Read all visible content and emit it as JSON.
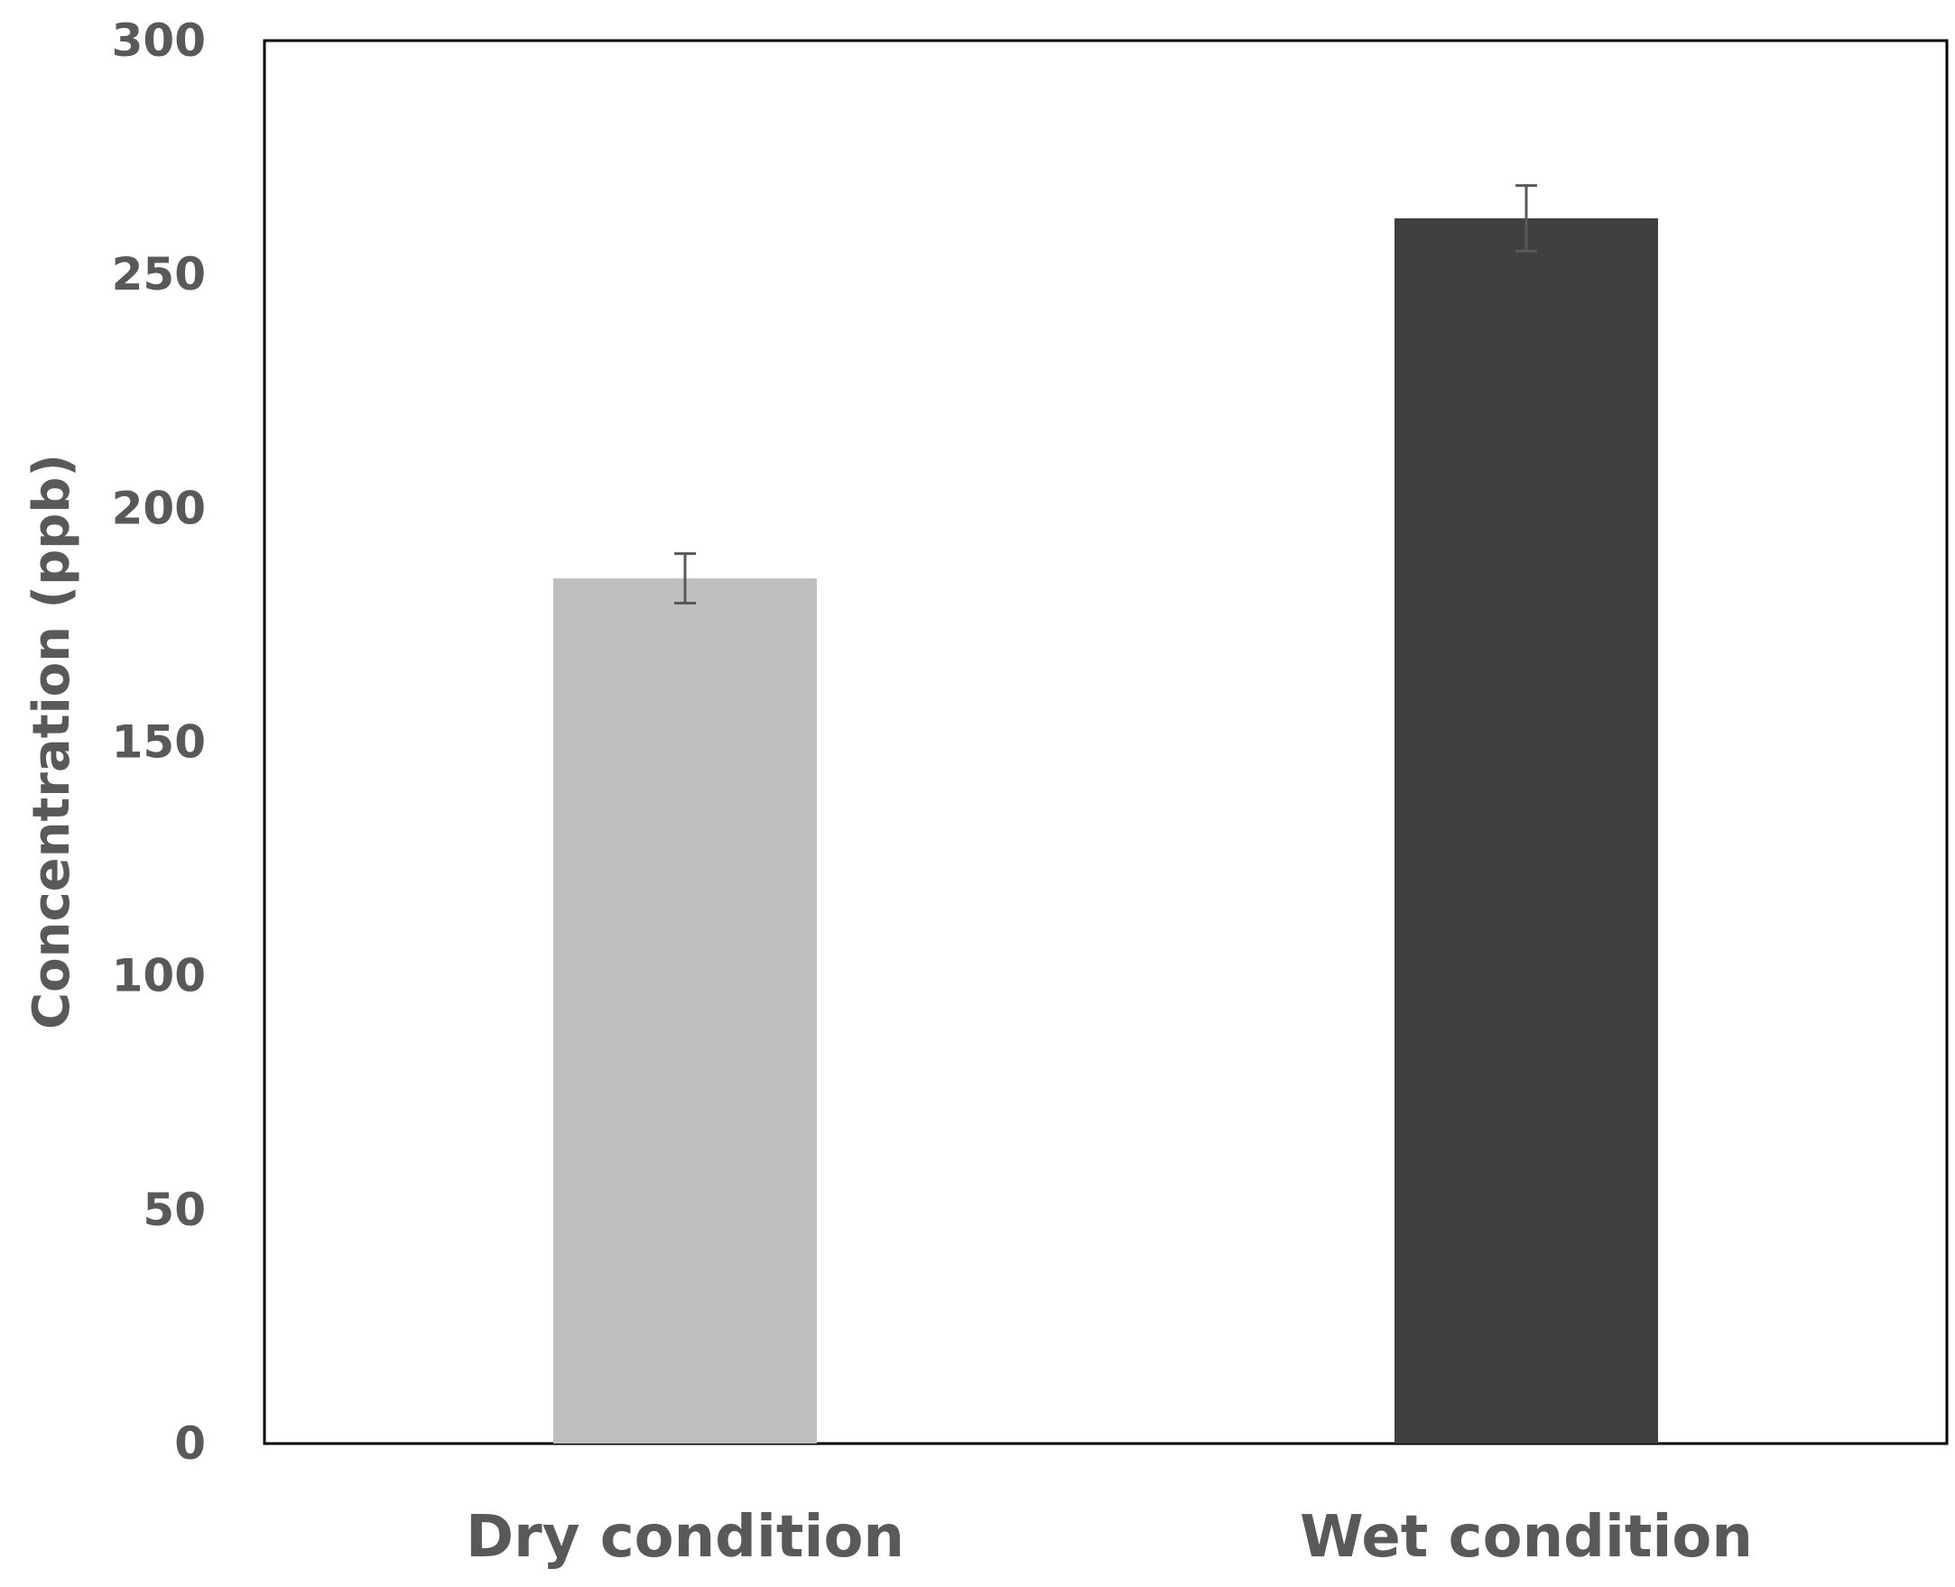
{
  "chart_data": {
    "type": "bar",
    "title": "",
    "xlabel": "",
    "ylabel": "Concentration (ppb)",
    "ylim": [
      0,
      300
    ],
    "yticks": [
      0,
      50,
      100,
      150,
      200,
      250,
      300
    ],
    "ytick_labels": [
      "0",
      "50",
      "100",
      "150",
      "200",
      "250",
      "300"
    ],
    "grid": false,
    "legend": "none",
    "categories": [
      "Dry condition",
      "Wet condition"
    ],
    "values": [
      185,
      262
    ],
    "errors": [
      5.3,
      7
    ],
    "colors": [
      "#bfbfbf",
      "#404040"
    ],
    "error_color": "#595959",
    "frame_color": "#000000"
  }
}
